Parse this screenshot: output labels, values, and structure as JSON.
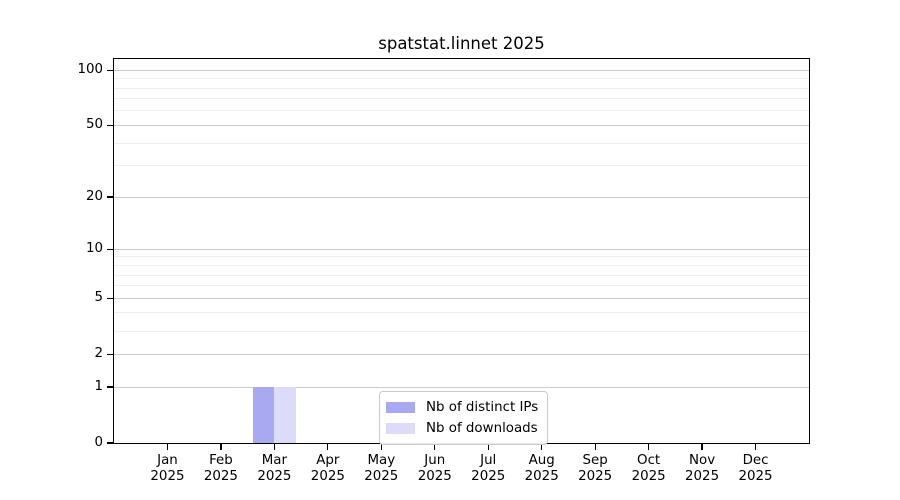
{
  "chart_data": {
    "type": "bar",
    "title": "spatstat.linnet 2025",
    "categories": [
      "Jan 2025",
      "Feb 2025",
      "Mar 2025",
      "Apr 2025",
      "May 2025",
      "Jun 2025",
      "Jul 2025",
      "Aug 2025",
      "Sep 2025",
      "Oct 2025",
      "Nov 2025",
      "Dec 2025"
    ],
    "x_tick_line1": [
      "Jan",
      "Feb",
      "Mar",
      "Apr",
      "May",
      "Jun",
      "Jul",
      "Aug",
      "Sep",
      "Oct",
      "Nov",
      "Dec"
    ],
    "x_tick_line2": [
      "2025",
      "2025",
      "2025",
      "2025",
      "2025",
      "2025",
      "2025",
      "2025",
      "2025",
      "2025",
      "2025",
      "2025"
    ],
    "series": [
      {
        "name": "Nb of distinct IPs",
        "color": "#a9a9f1",
        "values": [
          0,
          0,
          1,
          0,
          0,
          0,
          0,
          0,
          0,
          0,
          0,
          0
        ]
      },
      {
        "name": "Nb of downloads",
        "color": "#dcdcf8",
        "values": [
          0,
          0,
          1,
          0,
          0,
          0,
          0,
          0,
          0,
          0,
          0,
          0
        ]
      }
    ],
    "yscale": "log1p",
    "ylim": [
      0,
      115
    ],
    "y_major_ticks": [
      100,
      50,
      20,
      10,
      5,
      2,
      1,
      0
    ],
    "y_minor_gridlines": [
      3,
      4,
      6,
      7,
      8,
      9,
      30,
      40,
      60,
      70,
      80,
      90
    ],
    "grid": "horizontal",
    "legend_position": "bottom-center-inside",
    "colors": {
      "major_gridline": "#cccccc",
      "minor_gridline": "#eeeeee",
      "axis": "#000000",
      "text": "#000000",
      "background": "#ffffff"
    }
  }
}
